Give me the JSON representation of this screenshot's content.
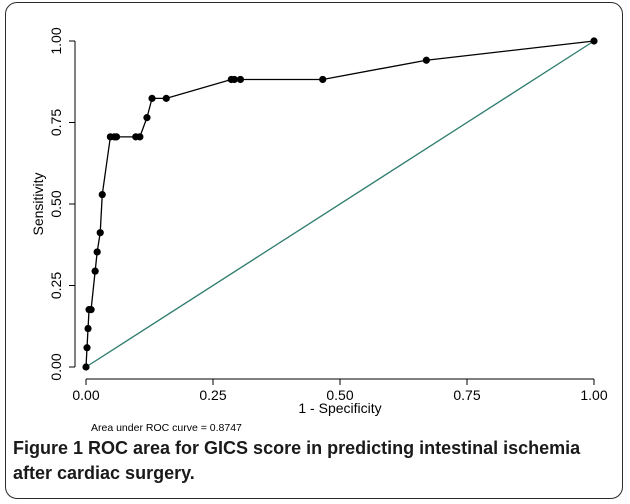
{
  "caption": {
    "label": "Figure 1",
    "text": "ROC area for GICS score in predicting intestinal ischemia after cardiac surgery."
  },
  "chart_data": {
    "type": "line",
    "xlabel": "1 - Specificity",
    "ylabel": "Sensitivity",
    "xlim": [
      0,
      1
    ],
    "ylim": [
      0,
      1
    ],
    "xticks": [
      "0.00",
      "0.25",
      "0.50",
      "0.75",
      "1.00"
    ],
    "yticks": [
      "0.00",
      "0.25",
      "0.50",
      "0.75",
      "1.00"
    ],
    "grid": false,
    "annotation": "Area under ROC curve = 0.8747",
    "series": [
      {
        "role": "roc-curve",
        "color": "#000000",
        "markers": true,
        "x": [
          0.0,
          0.002,
          0.004,
          0.006,
          0.01,
          0.018,
          0.022,
          0.028,
          0.032,
          0.048,
          0.056,
          0.06,
          0.098,
          0.106,
          0.12,
          0.13,
          0.158,
          0.286,
          0.292,
          0.304,
          0.466,
          0.67,
          1.0
        ],
        "y": [
          0.0,
          0.059,
          0.118,
          0.176,
          0.176,
          0.294,
          0.353,
          0.412,
          0.529,
          0.706,
          0.706,
          0.706,
          0.706,
          0.706,
          0.765,
          0.824,
          0.824,
          0.882,
          0.882,
          0.882,
          0.882,
          0.941,
          1.0
        ]
      },
      {
        "role": "reference-line",
        "color": "#2e7d6e",
        "markers": false,
        "x": [
          0,
          1
        ],
        "y": [
          0,
          1
        ]
      }
    ]
  }
}
